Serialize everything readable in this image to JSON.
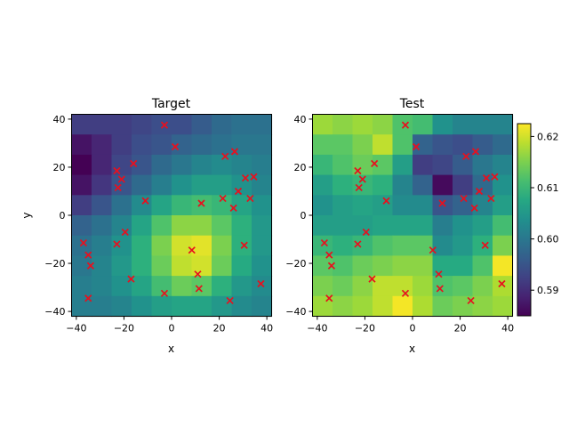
{
  "chart_data": [
    {
      "type": "heatmap",
      "title": "Target",
      "xlabel": "x",
      "ylabel": "y",
      "xlim": [
        -42,
        42
      ],
      "ylim": [
        -42,
        42
      ],
      "x_ticks": [
        -40,
        -20,
        0,
        20,
        40
      ],
      "y_ticks": [
        -40,
        -20,
        0,
        20,
        40
      ],
      "grid_size": [
        10,
        10
      ],
      "grid_extent": [
        -42,
        42
      ],
      "z_rows_top_to_bottom": [
        [
          0.592,
          0.592,
          0.592,
          0.593,
          0.594,
          0.594,
          0.596,
          0.598,
          0.599,
          0.599
        ],
        [
          0.587,
          0.589,
          0.592,
          0.594,
          0.595,
          0.597,
          0.598,
          0.599,
          0.6,
          0.6
        ],
        [
          0.585,
          0.589,
          0.593,
          0.595,
          0.598,
          0.6,
          0.602,
          0.603,
          0.602,
          0.601
        ],
        [
          0.587,
          0.591,
          0.595,
          0.598,
          0.601,
          0.604,
          0.606,
          0.606,
          0.604,
          0.602
        ],
        [
          0.592,
          0.595,
          0.599,
          0.603,
          0.607,
          0.61,
          0.611,
          0.61,
          0.607,
          0.604
        ],
        [
          0.597,
          0.599,
          0.602,
          0.607,
          0.612,
          0.616,
          0.616,
          0.613,
          0.609,
          0.605
        ],
        [
          0.599,
          0.601,
          0.604,
          0.609,
          0.615,
          0.62,
          0.621,
          0.615,
          0.609,
          0.605
        ],
        [
          0.6,
          0.602,
          0.605,
          0.609,
          0.614,
          0.619,
          0.62,
          0.614,
          0.608,
          0.604
        ],
        [
          0.601,
          0.602,
          0.604,
          0.607,
          0.611,
          0.614,
          0.613,
          0.609,
          0.605,
          0.603
        ],
        [
          0.601,
          0.601,
          0.602,
          0.604,
          0.606,
          0.607,
          0.607,
          0.605,
          0.603,
          0.602
        ]
      ],
      "points": [
        [
          -37,
          -11.5
        ],
        [
          -35,
          -16.5
        ],
        [
          -34,
          -21
        ],
        [
          -35,
          -34.5
        ],
        [
          -23,
          18.5
        ],
        [
          -21,
          15
        ],
        [
          -22.5,
          11.5
        ],
        [
          -23,
          -12
        ],
        [
          -19.5,
          -7
        ],
        [
          -16,
          21.5
        ],
        [
          -17,
          -26.5
        ],
        [
          -11,
          6
        ],
        [
          -3,
          37.5
        ],
        [
          1.5,
          28.5
        ],
        [
          -3,
          -32.5
        ],
        [
          8.5,
          -14.5
        ],
        [
          11,
          -24.5
        ],
        [
          11.5,
          -30.5
        ],
        [
          12.5,
          5
        ],
        [
          21.5,
          7
        ],
        [
          22.5,
          24.5
        ],
        [
          26.5,
          26.5
        ],
        [
          26,
          3
        ],
        [
          28,
          10
        ],
        [
          30.5,
          -12.5
        ],
        [
          31,
          15.5
        ],
        [
          33,
          7
        ],
        [
          34.5,
          16
        ],
        [
          24.5,
          -35.5
        ],
        [
          37.5,
          -28.5
        ]
      ]
    },
    {
      "type": "heatmap",
      "title": "Test",
      "xlabel": "x",
      "ylabel": "",
      "xlim": [
        -42,
        42
      ],
      "ylim": [
        -42,
        42
      ],
      "x_ticks": [
        -40,
        -20,
        0,
        20,
        40
      ],
      "y_ticks": [
        -40,
        -20,
        0,
        20,
        40
      ],
      "grid_size": [
        10,
        10
      ],
      "grid_extent": [
        -42,
        42
      ],
      "z_rows_top_to_bottom": [
        [
          0.617,
          0.616,
          0.617,
          0.616,
          0.612,
          0.611,
          0.604,
          0.602,
          0.602,
          0.602
        ],
        [
          0.613,
          0.613,
          0.615,
          0.619,
          0.612,
          0.597,
          0.595,
          0.594,
          0.596,
          0.598
        ],
        [
          0.61,
          0.612,
          0.614,
          0.613,
          0.606,
          0.592,
          0.593,
          0.596,
          0.6,
          0.602
        ],
        [
          0.606,
          0.609,
          0.61,
          0.609,
          0.602,
          0.597,
          0.586,
          0.592,
          0.598,
          0.604
        ],
        [
          0.604,
          0.606,
          0.607,
          0.606,
          0.603,
          0.603,
          0.595,
          0.597,
          0.602,
          0.606
        ],
        [
          0.606,
          0.606,
          0.606,
          0.607,
          0.607,
          0.607,
          0.601,
          0.604,
          0.606,
          0.611
        ],
        [
          0.61,
          0.609,
          0.61,
          0.612,
          0.613,
          0.613,
          0.603,
          0.605,
          0.609,
          0.615
        ],
        [
          0.613,
          0.612,
          0.614,
          0.615,
          0.616,
          0.616,
          0.608,
          0.608,
          0.612,
          0.622
        ],
        [
          0.615,
          0.614,
          0.616,
          0.619,
          0.619,
          0.617,
          0.612,
          0.613,
          0.615,
          0.618
        ],
        [
          0.617,
          0.616,
          0.617,
          0.619,
          0.622,
          0.618,
          0.614,
          0.615,
          0.616,
          0.617
        ]
      ],
      "points": [
        [
          -37,
          -11.5
        ],
        [
          -35,
          -16.5
        ],
        [
          -34,
          -21
        ],
        [
          -35,
          -34.5
        ],
        [
          -23,
          18.5
        ],
        [
          -21,
          15
        ],
        [
          -22.5,
          11.5
        ],
        [
          -23,
          -12
        ],
        [
          -19.5,
          -7
        ],
        [
          -16,
          21.5
        ],
        [
          -17,
          -26.5
        ],
        [
          -11,
          6
        ],
        [
          -3,
          37.5
        ],
        [
          1.5,
          28.5
        ],
        [
          -3,
          -32.5
        ],
        [
          8.5,
          -14.5
        ],
        [
          11,
          -24.5
        ],
        [
          11.5,
          -30.5
        ],
        [
          12.5,
          5
        ],
        [
          21.5,
          7
        ],
        [
          22.5,
          24.5
        ],
        [
          26.5,
          26.5
        ],
        [
          26,
          3
        ],
        [
          28,
          10
        ],
        [
          30.5,
          -12.5
        ],
        [
          31,
          15.5
        ],
        [
          33,
          7
        ],
        [
          34.5,
          16
        ],
        [
          24.5,
          -35.5
        ],
        [
          37.5,
          -28.5
        ]
      ],
      "colorbar": {
        "vmin": 0.585,
        "vmax": 0.6225,
        "ticks": [
          0.59,
          0.6,
          0.61,
          0.62
        ],
        "tick_labels": [
          "0.59",
          "0.60",
          "0.61",
          "0.62"
        ]
      }
    }
  ]
}
